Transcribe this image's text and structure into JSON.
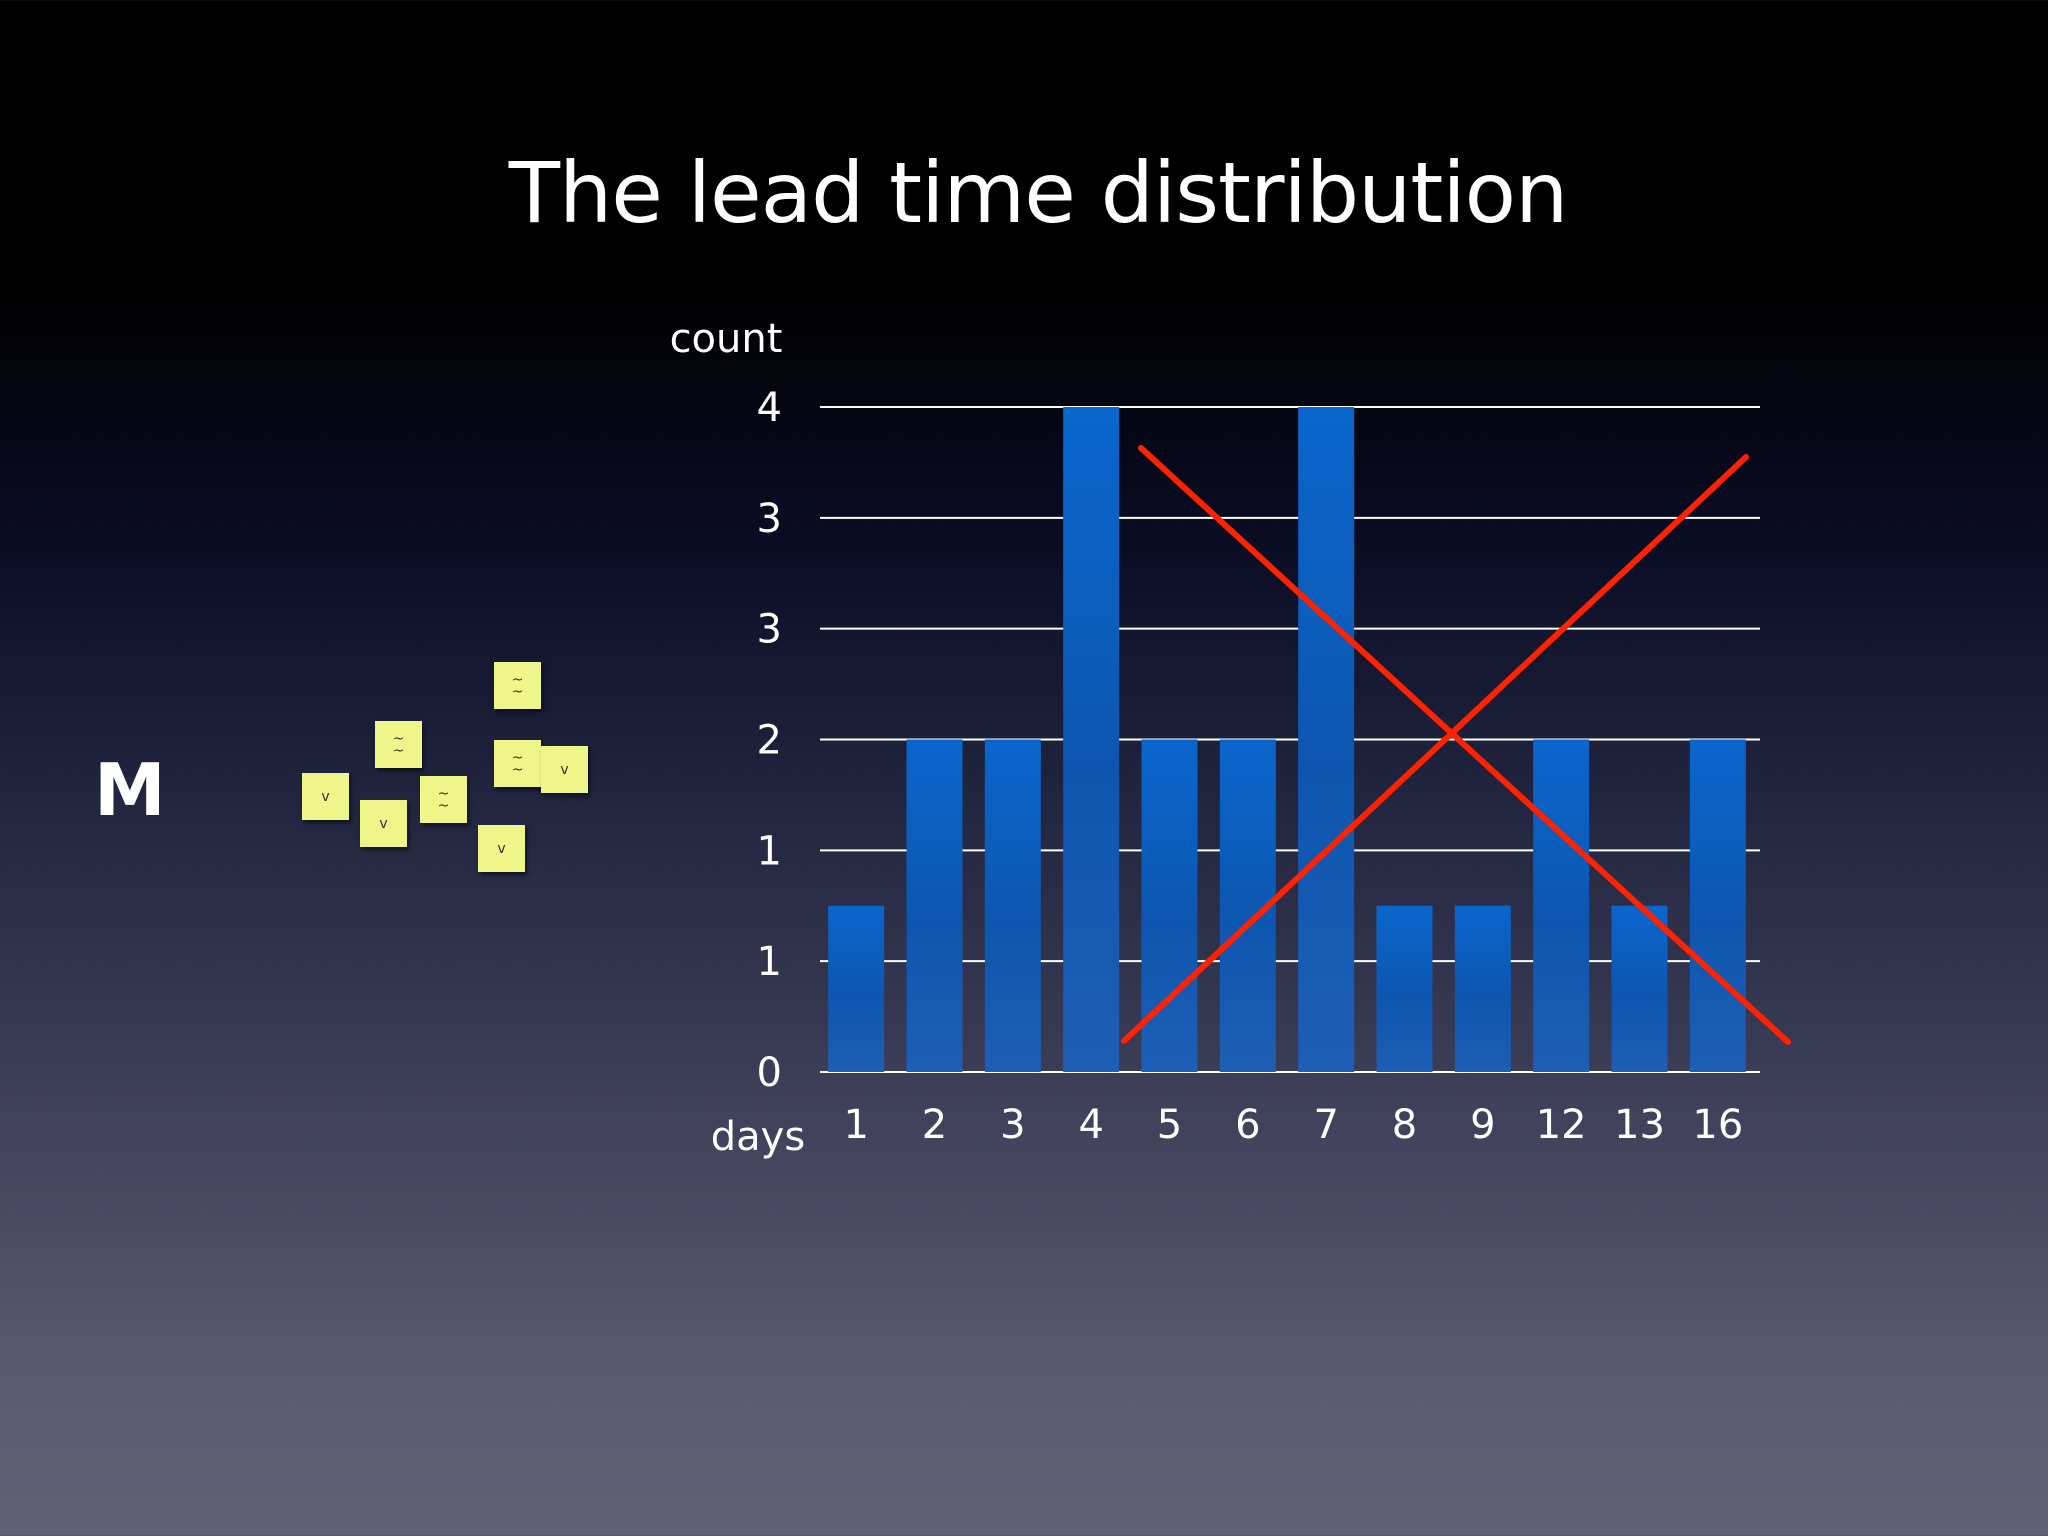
{
  "slide": {
    "title": "The lead time distribution",
    "side_letter": "M"
  },
  "sticky_notes": [
    {
      "marks": [
        "~",
        "~"
      ]
    },
    {
      "marks": [
        "~",
        "~"
      ]
    },
    {
      "marks": [
        "~",
        "~"
      ]
    },
    {
      "marks": [
        "v"
      ]
    },
    {
      "marks": [
        "~",
        "~"
      ]
    },
    {
      "marks": [
        "v"
      ]
    },
    {
      "marks": [
        "v"
      ]
    },
    {
      "marks": [
        "v"
      ]
    }
  ],
  "chart_data": {
    "type": "bar",
    "title": "The lead time distribution",
    "xlabel": "days",
    "ylabel": "count",
    "categories": [
      "1",
      "2",
      "3",
      "4",
      "5",
      "6",
      "7",
      "8",
      "9",
      "12",
      "13",
      "16"
    ],
    "values": [
      1.5,
      3,
      3,
      6,
      3,
      3,
      6,
      1.5,
      1.5,
      3,
      1.5,
      3
    ],
    "ylim": [
      0,
      6
    ],
    "y_tick_labels": [
      "0",
      "1",
      "1",
      "2",
      "3",
      "3",
      "4"
    ],
    "grid": true,
    "bar_color": "#1a66c8",
    "annotation": {
      "shape": "cross-out",
      "color": "#ff2200",
      "description": "red X drawn over the right part of the chart"
    }
  }
}
